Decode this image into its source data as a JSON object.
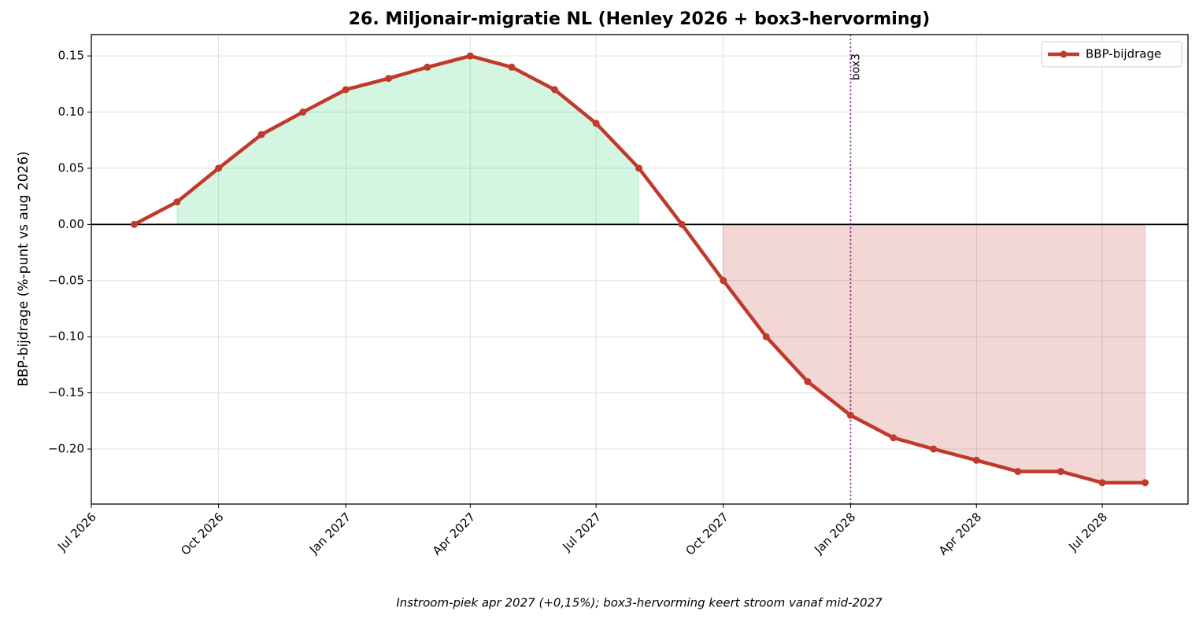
{
  "chart_data": {
    "type": "line",
    "title": "26. Miljonair-migratie NL (Henley 2026 + box3-hervorming)",
    "ylabel": "BBP-bijdrage (%-punt vs aug 2026)",
    "footnote": "Instroom-piek apr 2027 (+0,15%); box3-hervorming keert stroom vanaf mid-2027",
    "x": [
      "2026-08",
      "2026-09",
      "2026-10",
      "2026-11",
      "2026-12",
      "2027-01",
      "2027-02",
      "2027-03",
      "2027-04",
      "2027-05",
      "2027-06",
      "2027-07",
      "2027-08",
      "2027-09",
      "2027-10",
      "2027-11",
      "2027-12",
      "2028-01",
      "2028-02",
      "2028-03",
      "2028-04",
      "2028-05",
      "2028-06",
      "2028-07",
      "2028-08"
    ],
    "series": [
      {
        "name": "BBP-bijdrage",
        "color": "#c0392b",
        "values": [
          0,
          0.02,
          0.05,
          0.08,
          0.1,
          0.12,
          0.13,
          0.14,
          0.15,
          0.14,
          0.12,
          0.09,
          0.05,
          0.0,
          -0.05,
          -0.1,
          -0.14,
          -0.17,
          -0.19,
          -0.2,
          -0.21,
          -0.22,
          -0.22,
          -0.23,
          -0.23
        ]
      }
    ],
    "positive_fill": "#2ecc71",
    "negative_fill": "#c0392b",
    "xlim": [
      "2026-07",
      "2028-09"
    ],
    "xticks": [
      {
        "value": "2026-07",
        "label": "Jul 2026"
      },
      {
        "value": "2026-10",
        "label": "Oct 2026"
      },
      {
        "value": "2027-01",
        "label": "Jan 2027"
      },
      {
        "value": "2027-04",
        "label": "Apr 2027"
      },
      {
        "value": "2027-07",
        "label": "Jul 2027"
      },
      {
        "value": "2027-10",
        "label": "Oct 2027"
      },
      {
        "value": "2028-01",
        "label": "Jan 2028"
      },
      {
        "value": "2028-04",
        "label": "Apr 2028"
      },
      {
        "value": "2028-07",
        "label": "Jul 2028"
      }
    ],
    "ylim": [
      -0.249,
      0.169
    ],
    "yticks": [
      {
        "value": -0.2,
        "label": "−0.20"
      },
      {
        "value": -0.15,
        "label": "−0.15"
      },
      {
        "value": -0.1,
        "label": "−0.10"
      },
      {
        "value": -0.05,
        "label": "−0.05"
      },
      {
        "value": 0,
        "label": "0.00"
      },
      {
        "value": 0.05,
        "label": "0.05"
      },
      {
        "value": 0.1,
        "label": "0.10"
      },
      {
        "value": 0.15,
        "label": "0.15"
      }
    ],
    "hline": 0,
    "vline": {
      "x": "2028-01",
      "label": "box3",
      "color": "#800080"
    },
    "grid": true,
    "legend": "upper right"
  }
}
